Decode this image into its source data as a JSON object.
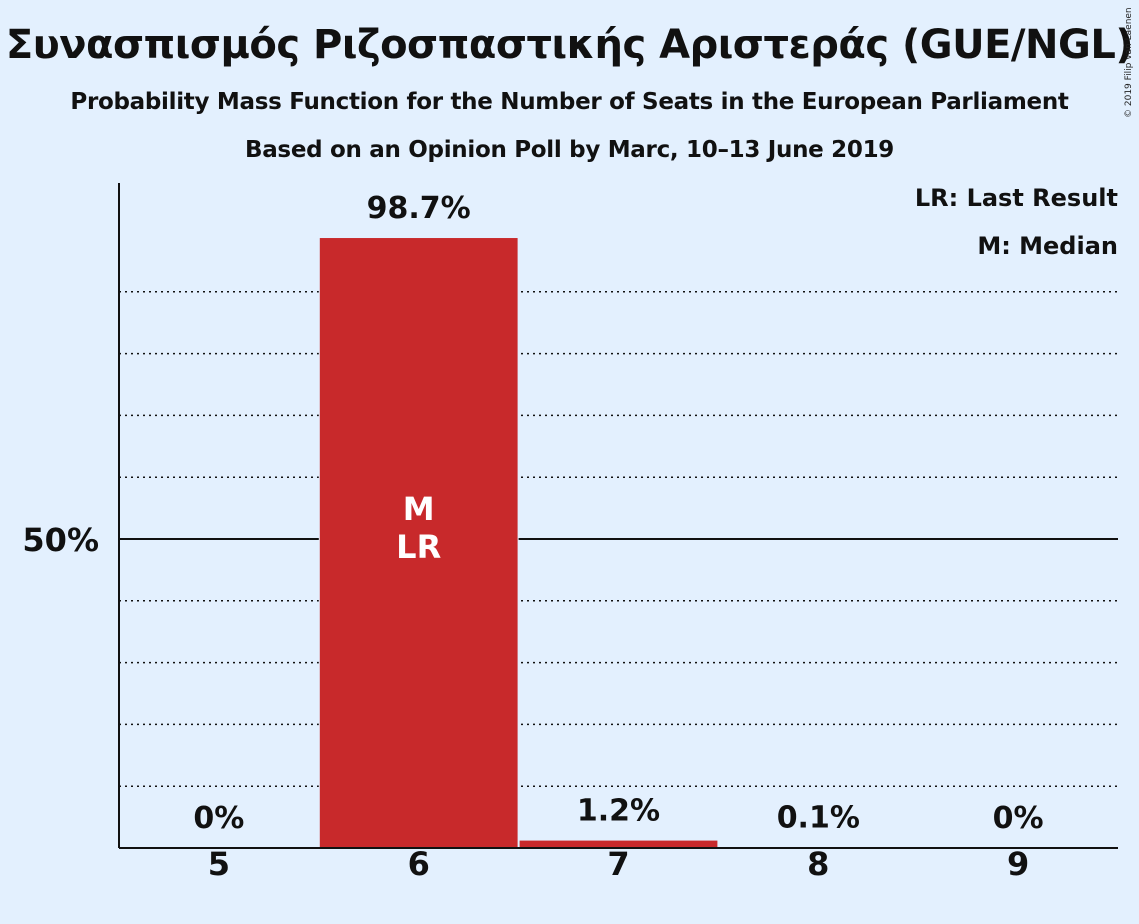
{
  "chart_data": {
    "type": "bar",
    "title": "Συνασπισμός Ριζοσπαστικής Αριστεράς (GUE/NGL)",
    "subtitle": "Probability Mass Function for the Number of Seats in the European Parliament",
    "subtitle2": "Based on an Opinion Poll by Marc, 10–13 June 2019",
    "categories": [
      "5",
      "6",
      "7",
      "8",
      "9"
    ],
    "values": [
      0,
      98.7,
      1.2,
      0.1,
      0
    ],
    "value_labels": [
      "0%",
      "98.7%",
      "1.2%",
      "0.1%",
      "0%"
    ],
    "ylim": [
      0,
      100
    ],
    "yticks": [
      50
    ],
    "ytick_labels": [
      "50%"
    ],
    "minor_gridlines": [
      10,
      20,
      30,
      40,
      60,
      70,
      80,
      90
    ],
    "grid": true,
    "bar_color": "#c8292b",
    "bar_annotations": [
      {
        "category": "6",
        "lines": [
          "M",
          "LR"
        ]
      }
    ],
    "legend": {
      "placement": "top-right",
      "entries": [
        "LR: Last Result",
        "M: Median"
      ]
    }
  },
  "copyright": "© 2019 Filip van Laenen"
}
